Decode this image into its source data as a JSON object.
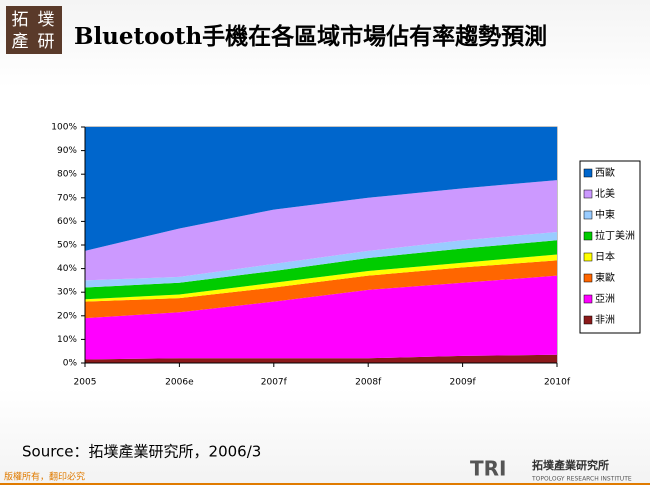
{
  "slide": {
    "logo": [
      "拓",
      "墣",
      "產",
      "研"
    ],
    "source": "Source：拓墣產業研究所，2006/3",
    "footer": "版權所有，翻印必究",
    "brand": "TRI",
    "brand_name": "拓墣產業研究所",
    "brand_sub": "TOPOLOGY RESEARCH INSTITUTE"
  },
  "chart_data": {
    "type": "stacked_area",
    "title": "Bluetooth手機在各區域市場佔有率趨勢預測",
    "categories": [
      "2005",
      "2006e",
      "2007f",
      "2008f",
      "2009f",
      "2010f"
    ],
    "series": [
      {
        "name": "非洲",
        "color": "#8b1a1a",
        "values": [
          1.5,
          2,
          2,
          2,
          3,
          3.5
        ]
      },
      {
        "name": "亞洲",
        "color": "#ff00ff",
        "values": [
          17.5,
          19.5,
          24,
          29,
          31,
          33.5
        ]
      },
      {
        "name": "東歐",
        "color": "#ff6600",
        "values": [
          7,
          6,
          6,
          6,
          6.5,
          6.5
        ]
      },
      {
        "name": "日本",
        "color": "#ffff00",
        "values": [
          1,
          1.5,
          2,
          2,
          2,
          2.5
        ]
      },
      {
        "name": "拉丁美洲",
        "color": "#00cc00",
        "values": [
          5,
          5,
          5,
          5.5,
          6,
          6
        ]
      },
      {
        "name": "中東",
        "color": "#99ccff",
        "values": [
          3,
          2.5,
          3,
          3,
          3.5,
          3.5
        ]
      },
      {
        "name": "北美",
        "color": "#cc99ff",
        "values": [
          12.5,
          20.5,
          23,
          22.5,
          22,
          22
        ]
      },
      {
        "name": "西歐",
        "color": "#0066cc",
        "values": [
          52.5,
          43,
          35,
          30,
          26,
          22.5
        ]
      }
    ],
    "ylim": [
      0,
      100
    ],
    "yticks": [
      {
        "value": 0,
        "label": "0%"
      },
      {
        "value": 10,
        "label": "10%"
      },
      {
        "value": 20,
        "label": "20%"
      },
      {
        "value": 30,
        "label": "30%"
      },
      {
        "value": 40,
        "label": "40%"
      },
      {
        "value": 50,
        "label": "50%"
      },
      {
        "value": 60,
        "label": "60%"
      },
      {
        "value": 70,
        "label": "70%"
      },
      {
        "value": 80,
        "label": "80%"
      },
      {
        "value": 90,
        "label": "90%"
      },
      {
        "value": 100,
        "label": "100%"
      }
    ],
    "legend": "right"
  }
}
